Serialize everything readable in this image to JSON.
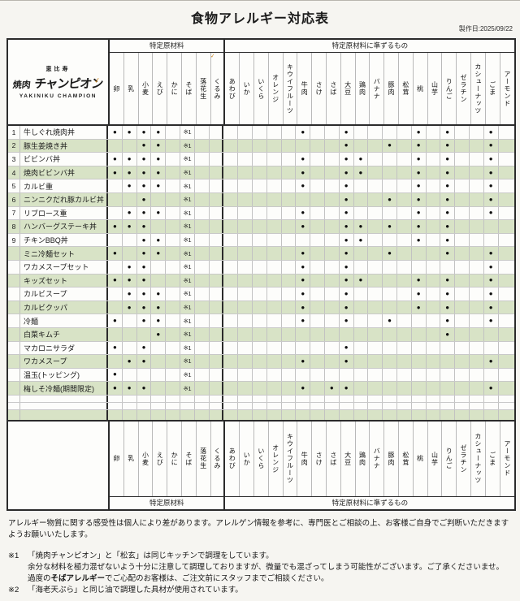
{
  "page": {
    "title": "食物アレルギー対応表",
    "date": "製作日:2025/09/22"
  },
  "logo": {
    "top": "恵比寿",
    "main_kanji": "焼肉",
    "main_kana": "チャンピオン",
    "sub": "YAKINIKU CHAMPION"
  },
  "table": {
    "group_specified": "特定原材料",
    "group_quasi": "特定原材料に準ずるもの",
    "columns_specified": [
      "卵",
      "乳",
      "小麦",
      "えび",
      "かに",
      "そば",
      "落花生",
      "くるみ"
    ],
    "columns_quasi": [
      "あわび",
      "いか",
      "いくら",
      "オレンジ",
      "キウイフルーツ",
      "牛肉",
      "さけ",
      "さば",
      "大豆",
      "鶏肉",
      "バナナ",
      "豚肉",
      "松茸",
      "桃",
      "山芋",
      "りんご",
      "ゼラチン",
      "カシューナッツ",
      "ごま",
      "アーモンド"
    ],
    "dot_symbol": "●",
    "note_mark": "※1",
    "note_column": "そば",
    "rows": [
      {
        "no": "1",
        "name": "牛しぐれ焼肉丼",
        "dots": [
          0,
          1,
          2,
          3,
          13,
          16,
          21,
          23,
          26
        ]
      },
      {
        "no": "2",
        "name": "豚生姜焼き丼",
        "dots": [
          2,
          3,
          16,
          19,
          21,
          23,
          26
        ]
      },
      {
        "no": "3",
        "name": "ビビンバ丼",
        "dots": [
          0,
          1,
          2,
          3,
          13,
          16,
          17,
          21,
          23,
          26
        ]
      },
      {
        "no": "4",
        "name": "焼肉ビビンバ丼",
        "dots": [
          0,
          1,
          2,
          3,
          13,
          16,
          17,
          21,
          23,
          26
        ]
      },
      {
        "no": "5",
        "name": "カルビ重",
        "dots": [
          1,
          2,
          3,
          13,
          16,
          21,
          23,
          26
        ]
      },
      {
        "no": "6",
        "name": "ニンニクだれ豚カルビ丼",
        "dots": [
          2,
          16,
          19,
          21,
          23,
          26
        ]
      },
      {
        "no": "7",
        "name": "リブロース重",
        "dots": [
          1,
          2,
          3,
          13,
          16,
          21,
          23,
          26
        ]
      },
      {
        "no": "8",
        "name": "ハンバーグステーキ丼",
        "dots": [
          0,
          1,
          2,
          13,
          16,
          17,
          19,
          21,
          23
        ]
      },
      {
        "no": "9",
        "name": "チキンBBQ丼",
        "dots": [
          2,
          3,
          16,
          17,
          21,
          23
        ]
      },
      {
        "no": "",
        "name": "ミニ冷麺セット",
        "dots": [
          0,
          2,
          3,
          13,
          16,
          19,
          23,
          26
        ]
      },
      {
        "no": "",
        "name": "ワカメスープセット",
        "dots": [
          1,
          2,
          13,
          16,
          26
        ]
      },
      {
        "no": "",
        "name": "キッズセット",
        "dots": [
          0,
          1,
          2,
          13,
          16,
          17,
          21,
          23,
          26
        ]
      },
      {
        "no": "",
        "name": "カルビスープ",
        "dots": [
          1,
          2,
          3,
          13,
          16,
          21,
          23,
          26
        ]
      },
      {
        "no": "",
        "name": "カルビクッパ",
        "dots": [
          1,
          2,
          3,
          13,
          16,
          21,
          23,
          26
        ]
      },
      {
        "no": "",
        "name": "冷麺",
        "dots": [
          0,
          2,
          3,
          13,
          16,
          19,
          23,
          26
        ]
      },
      {
        "no": "",
        "name": "白菜キムチ",
        "dots": [
          3,
          23
        ]
      },
      {
        "no": "",
        "name": "マカロニサラダ",
        "dots": [
          0,
          2,
          16
        ]
      },
      {
        "no": "",
        "name": "ワカメスープ",
        "dots": [
          1,
          2,
          13,
          16,
          26
        ]
      },
      {
        "no": "",
        "name": "温玉(トッピング)",
        "dots": [
          0
        ]
      },
      {
        "no": "",
        "name": "梅しそ冷麺(期間限定)",
        "dots": [
          0,
          1,
          2,
          13,
          15,
          16,
          26
        ]
      }
    ]
  },
  "footer": {
    "disclaimer": "アレルギー物質に関する感受性は個人により差があります。アレルゲン情報を参考に、専門医とご相談の上、お客様ご自身でご判断いただきますようお願いいたします。",
    "note1_mark": "※1",
    "note1_line1": "「焼肉チャンピオン」と「松玄」は同じキッチンで調理をしています。",
    "note1_line2": "余分な材料を極力混ぜないよう十分に注意して調理しておりますが、微量でも混ざってしまう可能性がございます。ご了承くださいませ。",
    "note1_line3_pre": "過度の",
    "note1_line3_bold": "そばアレルギー",
    "note1_line3_post": "でご心配のお客様は、ご注文前にスタッフまでご相談ください。",
    "note2_mark": "※2",
    "note2_line1": "「海老天ぷら」と同じ油で調理した具材が使用されています。"
  },
  "artifacts": {
    "check1": "✓",
    "check2": "✓"
  }
}
